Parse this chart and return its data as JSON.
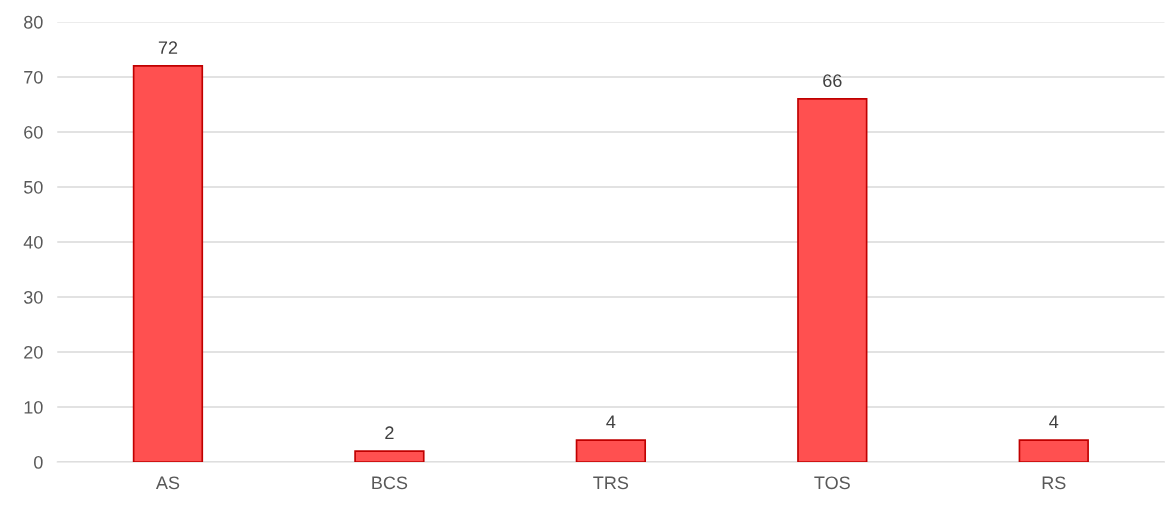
{
  "chart_data": {
    "type": "bar",
    "categories": [
      "AS",
      "BCS",
      "TRS",
      "TOS",
      "RS"
    ],
    "values": [
      72,
      2,
      4,
      66,
      4
    ],
    "color": "#ff5050",
    "ylim": [
      0,
      80
    ],
    "yticks": [
      0,
      10,
      20,
      30,
      40,
      50,
      60,
      70,
      80
    ],
    "grid": "y",
    "data_labels": true
  }
}
